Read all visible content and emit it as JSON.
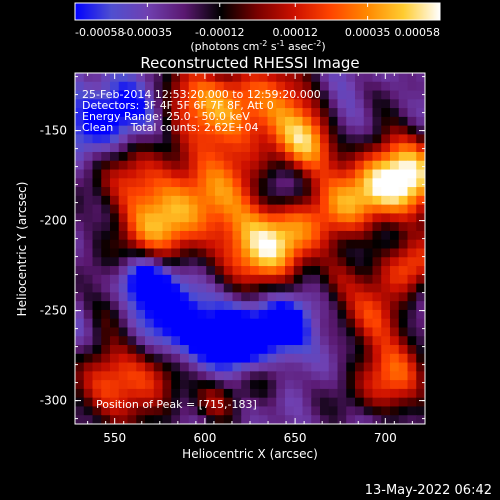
{
  "chart_data": {
    "type": "heatmap",
    "title": "Reconstructed RHESSI Image",
    "colorbar": {
      "ticks": [
        "-0.00058",
        "-0.00035",
        "-0.00012",
        "0.00012",
        "0.00035",
        "0.00058"
      ],
      "range": [
        -0.00058,
        0.00058
      ],
      "unit_parts": [
        "(photons cm",
        "-2",
        " s",
        "-1",
        " asec",
        "-2",
        ")"
      ],
      "stops": [
        "#0000ff",
        "#4f4fd0",
        "#7040b0",
        "#5a1870",
        "#000000",
        "#7a0000",
        "#cc1000",
        "#ff4400",
        "#ff8800",
        "#ffcc30",
        "#ffffff"
      ]
    },
    "xlabel": "Heliocentric X (arcsec)",
    "ylabel": "Heliocentric Y (arcsec)",
    "xlim": [
      528,
      722
    ],
    "ylim": [
      -313,
      -118
    ],
    "xticks": [
      "550",
      "600",
      "650",
      "700"
    ],
    "yticks": [
      "-150",
      "-200",
      "-250",
      "-300"
    ],
    "annotations": [
      "25-Feb-2014 12:53:20.000 to 12:59:20.000",
      "Detectors: 3F 4F 5F 6F 7F 8F, Att 0",
      "Energy Range: 25.0 - 50.0 keV",
      "Clean     Total counts: 2.62E+04"
    ],
    "peak_label": "Position of Peak = [715,-183]",
    "peak": [
      715,
      -183
    ],
    "footer": "13-May-2022 06:42"
  }
}
